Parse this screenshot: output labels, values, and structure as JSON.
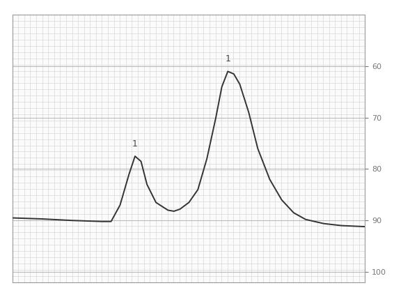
{
  "chart_data": {
    "type": "line",
    "x": [
      0,
      5,
      10,
      15,
      16.5,
      18,
      19.5,
      20.5,
      21.5,
      22.5,
      24,
      26,
      27,
      28,
      29.5,
      31,
      32.5,
      34,
      35,
      36,
      37,
      38,
      39.5,
      41,
      43,
      45,
      47,
      49,
      52,
      55,
      58.9
    ],
    "values": [
      89.5,
      89.7,
      90,
      90.2,
      90.2,
      87,
      81,
      77.5,
      78.5,
      83,
      86.5,
      88,
      88.2,
      87.8,
      86.5,
      84,
      78,
      70,
      64,
      61,
      61.5,
      63.5,
      69,
      76,
      82,
      86,
      88.5,
      89.8,
      90.6,
      91,
      91.2
    ],
    "color": "#333333",
    "xlim": [
      0,
      58.9
    ],
    "ylim": [
      102,
      50
    ],
    "yticks": [
      60,
      70,
      80,
      90,
      100
    ],
    "tick_labels": "y",
    "grid": true,
    "annotations": [
      {
        "text": "1",
        "x": 20.5,
        "y": 77.5
      },
      {
        "text": "1",
        "x": 36,
        "y": 61
      }
    ]
  }
}
